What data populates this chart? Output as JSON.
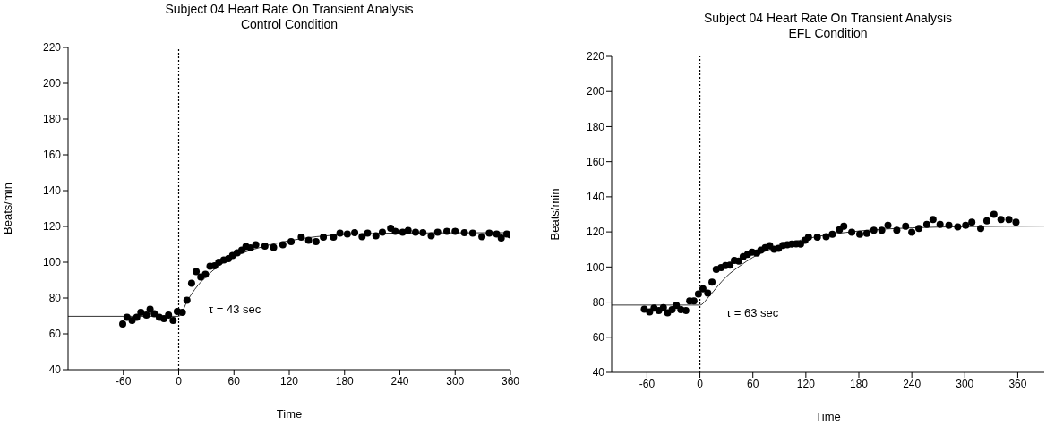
{
  "chart_data": [
    {
      "type": "scatter",
      "title": "Subject 04 Heart Rate On Transient Analysis",
      "subtitle": "Control Condition",
      "xlabel": "Time",
      "ylabel": "Beats/min",
      "xlim": [
        -120,
        360
      ],
      "xticks": [
        -60,
        0,
        60,
        120,
        180,
        240,
        300,
        360
      ],
      "ylim": [
        40,
        220
      ],
      "yticks": [
        40,
        60,
        80,
        100,
        120,
        140,
        160,
        180,
        200,
        220
      ],
      "marker": "circle",
      "series": [
        {
          "color": "#000000",
          "x": [
            -60.7,
            -56,
            -50.5,
            -45.5,
            -41,
            -35,
            -31,
            -26.5,
            -21,
            -16,
            -11,
            -6,
            -1.5,
            4,
            9,
            14,
            19,
            24,
            29,
            34,
            39,
            43.6,
            49,
            54,
            58.5,
            63.5,
            68.5,
            73,
            78,
            83.7,
            93.6,
            103,
            113,
            122,
            133,
            141,
            149,
            157,
            168,
            175,
            183,
            191,
            199,
            205,
            214,
            221,
            230,
            235,
            243,
            249,
            257,
            265,
            274,
            281,
            291,
            300,
            310,
            319,
            329,
            337,
            345,
            350,
            356,
            360
          ],
          "values": [
            65.5,
            69.2,
            67.5,
            69.2,
            72,
            70.5,
            73.8,
            71.2,
            69.2,
            68.5,
            70.5,
            67.5,
            72.5,
            72,
            78.7,
            88.3,
            94.7,
            91.7,
            93.3,
            97.8,
            98,
            100,
            101.3,
            102,
            103.7,
            105.3,
            106.7,
            108.7,
            108,
            109.7,
            109,
            108.2,
            109.8,
            111.5,
            114,
            112.3,
            111.5,
            114,
            114,
            116.2,
            115.7,
            116.5,
            114.3,
            116.2,
            114.8,
            116.8,
            119,
            117.3,
            116.8,
            117.7,
            116.8,
            116.5,
            114.8,
            116.8,
            117.3,
            117.3,
            116.5,
            116.2,
            114.3,
            116.2,
            115.7,
            113.5,
            115.7,
            115.2
          ]
        },
        {
          "type": "line",
          "color": "#333333",
          "marker": "none",
          "line_style": "solid",
          "x": [
            -120,
            0,
            10,
            20,
            30,
            45,
            60,
            90,
            120,
            150,
            180,
            240,
            360
          ],
          "values": [
            69.8,
            69.8,
            79,
            86.5,
            92,
            98.5,
            103,
            108.5,
            112,
            114.3,
            115.4,
            116.3,
            116.5
          ]
        }
      ],
      "ref_lines": [
        {
          "axis": "x",
          "value": 0,
          "color": "#000000",
          "line_style": "dotted"
        }
      ],
      "annotations": [
        "τ = 43 sec"
      ]
    },
    {
      "type": "scatter",
      "title": "Subject 04 Heart Rate On Transient Analysis",
      "subtitle": "EFL Condition",
      "xlabel": "Time",
      "ylabel": "Beats/min",
      "xlim": [
        -100,
        390
      ],
      "xticks": [
        -60,
        0,
        60,
        120,
        180,
        240,
        300,
        360
      ],
      "ylim": [
        40,
        220
      ],
      "yticks": [
        40,
        60,
        80,
        100,
        120,
        140,
        160,
        180,
        200,
        220
      ],
      "marker": "circle",
      "series": [
        {
          "color": "#000000",
          "x": [
            -63,
            -57,
            -52,
            -46.6,
            -41.4,
            -36.6,
            -31.5,
            -26.7,
            -21.6,
            -16,
            -11.6,
            -6.8,
            -1.7,
            3.4,
            8.9,
            13.7,
            18.5,
            24,
            29,
            34,
            39,
            44,
            49,
            54,
            59,
            64.4,
            69,
            74,
            79,
            84,
            89,
            94,
            99,
            104,
            109,
            114,
            119,
            123,
            133,
            143,
            150,
            158,
            163,
            172,
            181,
            189,
            197,
            206,
            213,
            223,
            233,
            240,
            248,
            257,
            264,
            272,
            282,
            292,
            301,
            308,
            318,
            325,
            333,
            341,
            350,
            358
          ],
          "values": [
            75.9,
            74.4,
            76.6,
            75.2,
            76.9,
            73.9,
            75.7,
            78.1,
            75.7,
            75.2,
            80.7,
            80.7,
            84.6,
            87.5,
            85.1,
            91.4,
            98.7,
            99.7,
            100.8,
            101.1,
            103.7,
            103.3,
            105.9,
            107.2,
            108.4,
            107.9,
            109.6,
            111,
            112.2,
            110.1,
            110.6,
            112.3,
            112.7,
            113,
            113.2,
            113,
            115.2,
            117,
            117,
            117.3,
            118.7,
            121.2,
            123.2,
            119.8,
            118.7,
            119.2,
            120.9,
            120.9,
            123.8,
            120.9,
            123.2,
            119.8,
            122,
            124.2,
            127.1,
            124.2,
            123.8,
            122.9,
            123.8,
            125.5,
            122,
            126.3,
            130,
            127.1,
            127.1,
            125.5
          ]
        },
        {
          "type": "line",
          "color": "#333333",
          "marker": "none",
          "line_style": "solid",
          "x": [
            -100,
            0,
            10,
            20,
            30,
            45,
            60,
            90,
            120,
            180,
            240,
            300,
            390
          ],
          "values": [
            78.3,
            78.3,
            83,
            89,
            94.5,
            100.5,
            105.5,
            112,
            116,
            120.5,
            122.3,
            123,
            123.3
          ]
        }
      ],
      "ref_lines": [
        {
          "axis": "x",
          "value": 0,
          "color": "#000000",
          "line_style": "dotted"
        }
      ],
      "annotations": [
        "τ = 63 sec"
      ]
    }
  ]
}
